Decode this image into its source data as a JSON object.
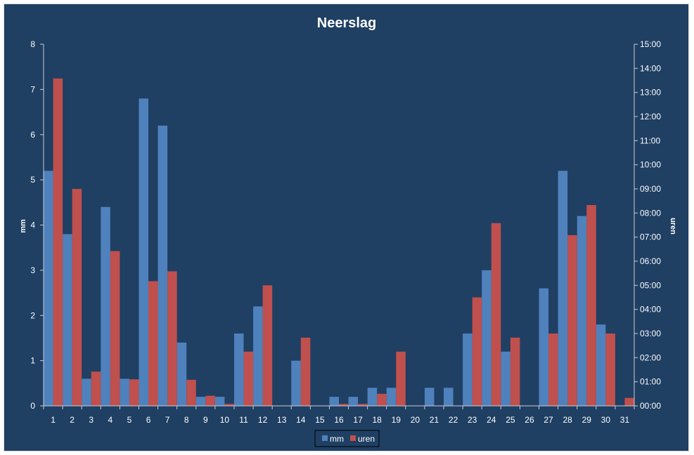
{
  "chart_data": {
    "type": "bar",
    "title": "Neerslag",
    "xlabel": "",
    "ylabel": "mm",
    "y2label": "uren",
    "categories": [
      "1",
      "2",
      "3",
      "4",
      "5",
      "6",
      "7",
      "8",
      "9",
      "10",
      "11",
      "12",
      "13",
      "14",
      "15",
      "16",
      "17",
      "18",
      "19",
      "20",
      "21",
      "22",
      "23",
      "24",
      "25",
      "26",
      "27",
      "28",
      "29",
      "30",
      "31"
    ],
    "ylim": [
      0,
      8
    ],
    "yticks": [
      "0",
      "1",
      "2",
      "3",
      "4",
      "5",
      "6",
      "7",
      "8"
    ],
    "y2lim_hours": [
      0,
      15
    ],
    "y2ticks": [
      "00:00",
      "01:00",
      "02:00",
      "03:00",
      "04:00",
      "05:00",
      "06:00",
      "07:00",
      "08:00",
      "09:00",
      "10:00",
      "11:00",
      "12:00",
      "13:00",
      "14:00",
      "15:00"
    ],
    "grid": false,
    "legend_position": "bottom",
    "series": [
      {
        "name": "mm",
        "axis": "left",
        "color": "#4f81bd",
        "values": [
          5.2,
          3.8,
          0.6,
          4.4,
          0.6,
          6.8,
          6.2,
          1.4,
          0.2,
          0.2,
          1.6,
          2.2,
          0,
          1.0,
          0,
          0.2,
          0.2,
          0.4,
          0.4,
          0,
          0.4,
          0.4,
          1.6,
          3.0,
          1.2,
          0,
          2.6,
          5.2,
          4.2,
          1.8,
          0
        ]
      },
      {
        "name": "uren",
        "axis": "right",
        "unit": "hours",
        "color": "#c0504d",
        "values": [
          13.58,
          9.0,
          1.42,
          6.42,
          1.1,
          5.17,
          5.58,
          1.08,
          0.42,
          0.08,
          2.25,
          5.0,
          0,
          2.83,
          0,
          0.08,
          0.08,
          0.5,
          2.25,
          0,
          0,
          0,
          4.5,
          7.58,
          2.83,
          0,
          3.0,
          7.08,
          8.33,
          3.0,
          0.33
        ]
      }
    ]
  }
}
